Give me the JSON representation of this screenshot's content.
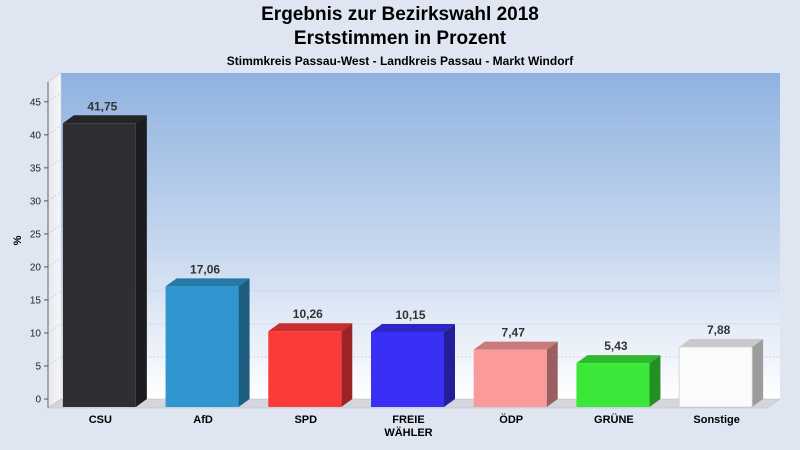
{
  "chart_data": {
    "type": "bar",
    "title": "Ergebnis zur Bezirkswahl 2018",
    "subtitle": "Erststimmen in Prozent",
    "subsubtitle": "Stimmkreis Passau-West - Landkreis Passau - Markt Windorf",
    "ylabel": "%",
    "xlabel": "",
    "ylim": [
      0,
      48
    ],
    "yticks": [
      0,
      5,
      10,
      15,
      20,
      25,
      30,
      35,
      40,
      45
    ],
    "categories": [
      [
        "CSU"
      ],
      [
        "AfD"
      ],
      [
        "SPD"
      ],
      [
        "FREIE",
        "WÄHLER"
      ],
      [
        "ÖDP"
      ],
      [
        "GRÜNE"
      ],
      [
        "Sonstige"
      ]
    ],
    "values": [
      41.75,
      17.06,
      10.26,
      10.15,
      7.47,
      5.43,
      7.88
    ],
    "value_labels": [
      "41,75",
      "17,06",
      "10,26",
      "10,15",
      "7,47",
      "5,43",
      "7,88"
    ],
    "colors": [
      "#2e2e33",
      "#2f96cf",
      "#fb3a3a",
      "#3a30f5",
      "#fb9a9a",
      "#3ae83a",
      "#fbfbfb"
    ],
    "grid": true,
    "style": "3d"
  }
}
